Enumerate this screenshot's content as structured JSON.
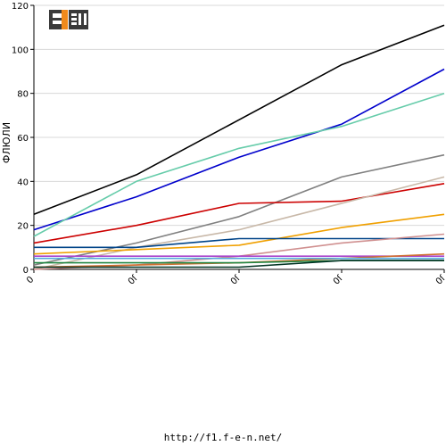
{
  "chart_data": {
    "type": "line",
    "ylabel": "ФЛЮЛИ",
    "xlabel": "",
    "ylim": [
      0,
      120
    ],
    "yticks": [
      0,
      20,
      40,
      60,
      80,
      100,
      120
    ],
    "x": [
      0,
      1,
      2,
      3,
      4
    ],
    "xtick_labels": [
      "0",
      "0ſ",
      "0ſ",
      "0ſ",
      "0ſ"
    ],
    "grid": "horizontal",
    "series": [
      {
        "color": "#000000",
        "values": [
          25,
          43,
          68,
          93,
          111
        ]
      },
      {
        "color": "#0000cc",
        "values": [
          18,
          33,
          51,
          66,
          91
        ]
      },
      {
        "color": "#66ccaa",
        "values": [
          15,
          40,
          55,
          65,
          80
        ]
      },
      {
        "color": "#808080",
        "values": [
          2,
          12,
          24,
          42,
          52
        ]
      },
      {
        "color": "#cc0000",
        "values": [
          12,
          20,
          30,
          31,
          39
        ]
      },
      {
        "color": "#c8b8a8",
        "values": [
          0,
          10,
          18,
          30,
          42
        ]
      },
      {
        "color": "#f0a000",
        "values": [
          7,
          9,
          11,
          19,
          25
        ]
      },
      {
        "color": "#004488",
        "values": [
          10,
          10,
          14,
          14,
          14
        ]
      },
      {
        "color": "#d09090",
        "values": [
          0,
          2,
          6,
          12,
          16
        ]
      },
      {
        "color": "#aa44cc",
        "values": [
          6,
          6,
          6,
          6,
          6
        ]
      },
      {
        "color": "#d07030",
        "values": [
          1,
          2,
          3,
          5,
          7
        ]
      },
      {
        "color": "#55aadd",
        "values": [
          5,
          5,
          5,
          5,
          5
        ]
      },
      {
        "color": "#228844",
        "values": [
          3,
          3,
          3,
          4,
          4
        ]
      },
      {
        "color": "#003322",
        "values": [
          1,
          1,
          1,
          4,
          4
        ]
      }
    ]
  },
  "logo": {
    "text": "F1EN",
    "colors": {
      "dark": "#3a3a3a",
      "orange": "#f08a1c"
    }
  },
  "footer": {
    "url": "http://f1.f-e-n.net/"
  }
}
